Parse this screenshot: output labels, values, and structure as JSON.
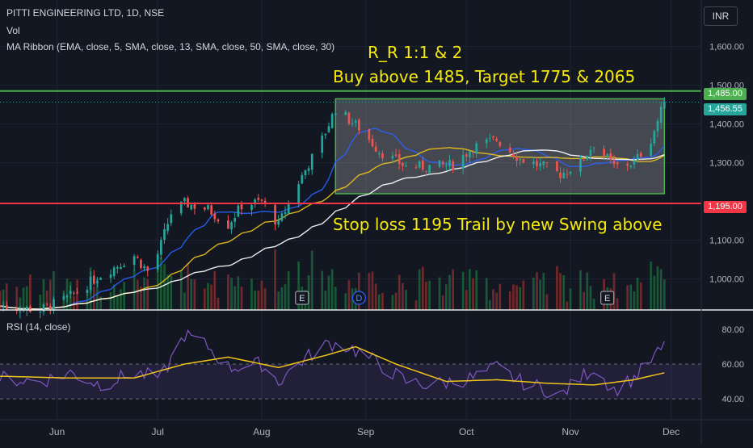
{
  "header": {
    "symbol": "PITTI ENGINEERING LTD, 1D, NSE",
    "vol_label": "Vol",
    "ribbon_label": "MA Ribbon (EMA, close, 5, SMA, close, 13, SMA, close, 50, SMA, close, 30)",
    "currency": "INR"
  },
  "annotations": {
    "rr": "R_R 1:1 & 2",
    "buy": "Buy above 1485, Target 1775 & 2065",
    "stop": "Stop loss 1195 Trail by new Swing above"
  },
  "badges": {
    "buy_level": "1,485.00",
    "last_price": "1,456.55",
    "stop_level": "1,195.00"
  },
  "events": [
    {
      "label": "E",
      "x": "2024-08-13"
    },
    {
      "label": "D",
      "x": "2024-08-30"
    },
    {
      "label": "E",
      "x": "2024-11-12"
    }
  ],
  "colors": {
    "background": "#131722",
    "up": "#26a69a",
    "down": "#ef5350",
    "buy_line": "#4caf50",
    "stop_line": "#f23645",
    "box_border": "#4caf50",
    "annotation": "#f5e90c",
    "rsi_line": "#7e57c2",
    "rsi_ma": "#f0c419",
    "ma_fast": "#2962ff",
    "ma_mid": "#f0c419",
    "ma_slow": "#ffffff"
  },
  "chart_data": [
    {
      "type": "candlestick",
      "y_axis_ticks": [
        "1,600.00",
        "1,500.00",
        "1,400.00",
        "1,300.00",
        "1,100.00",
        "1,000.00"
      ],
      "y_axis_values": [
        1600,
        1500,
        1400,
        1300,
        1100,
        1000
      ],
      "ylim": [
        920,
        1720
      ],
      "x_labels": [
        "Jun",
        "Jul",
        "Aug",
        "Sep",
        "Oct",
        "Nov",
        "Dec"
      ],
      "x_label_dates": [
        "2024-06-01",
        "2024-07-01",
        "2024-08-01",
        "2024-09-01",
        "2024-10-01",
        "2024-11-01",
        "2024-12-01"
      ],
      "xlim": [
        "2024-05-15",
        "2024-12-10"
      ],
      "levels": {
        "buy_above": 1485,
        "stop_loss": 1195,
        "last_price": 1456.55
      },
      "range_box": {
        "x_start": "2024-08-23",
        "x_end": "2024-11-29",
        "y_low": 1220,
        "y_high": 1465
      },
      "anchors": [
        [
          "2024-05-15",
          930
        ],
        [
          "2024-05-27",
          920
        ],
        [
          "2024-06-04",
          950
        ],
        [
          "2024-06-14",
          1010
        ],
        [
          "2024-06-24",
          1060
        ],
        [
          "2024-06-29",
          1010
        ],
        [
          "2024-07-05",
          1170
        ],
        [
          "2024-07-09",
          1195
        ],
        [
          "2024-07-16",
          1180
        ],
        [
          "2024-07-22",
          1140
        ],
        [
          "2024-07-26",
          1190
        ],
        [
          "2024-08-01",
          1200
        ],
        [
          "2024-08-06",
          1140
        ],
        [
          "2024-08-12",
          1250
        ],
        [
          "2024-08-19",
          1360
        ],
        [
          "2024-08-23",
          1440
        ],
        [
          "2024-08-30",
          1390
        ],
        [
          "2024-09-05",
          1330
        ],
        [
          "2024-09-13",
          1290
        ],
        [
          "2024-09-20",
          1290
        ],
        [
          "2024-09-27",
          1295
        ],
        [
          "2024-10-03",
          1340
        ],
        [
          "2024-10-10",
          1360
        ],
        [
          "2024-10-17",
          1310
        ],
        [
          "2024-10-24",
          1290
        ],
        [
          "2024-10-29",
          1270
        ],
        [
          "2024-11-04",
          1300
        ],
        [
          "2024-11-08",
          1350
        ],
        [
          "2024-11-14",
          1290
        ],
        [
          "2024-11-20",
          1300
        ],
        [
          "2024-11-25",
          1360
        ],
        [
          "2024-11-29",
          1456.55
        ]
      ]
    },
    {
      "type": "line",
      "title": "RSI (14, close)",
      "y_axis_ticks": [
        "80.00",
        "60.00",
        "40.00"
      ],
      "y_axis_values": [
        80,
        60,
        40
      ],
      "ylim": [
        28,
        86
      ],
      "band": [
        40,
        60
      ],
      "rsi_anchors": [
        [
          "2024-05-15",
          52
        ],
        [
          "2024-05-27",
          50
        ],
        [
          "2024-06-05",
          55
        ],
        [
          "2024-06-14",
          48
        ],
        [
          "2024-06-24",
          55
        ],
        [
          "2024-07-02",
          52
        ],
        [
          "2024-07-09",
          77
        ],
        [
          "2024-07-16",
          70
        ],
        [
          "2024-07-22",
          58
        ],
        [
          "2024-08-01",
          60
        ],
        [
          "2024-08-06",
          50
        ],
        [
          "2024-08-13",
          62
        ],
        [
          "2024-08-21",
          72
        ],
        [
          "2024-08-27",
          70
        ],
        [
          "2024-09-05",
          60
        ],
        [
          "2024-09-13",
          50
        ],
        [
          "2024-09-20",
          48
        ],
        [
          "2024-09-27",
          50
        ],
        [
          "2024-10-03",
          52
        ],
        [
          "2024-10-10",
          58
        ],
        [
          "2024-10-17",
          50
        ],
        [
          "2024-10-24",
          46
        ],
        [
          "2024-10-29",
          42
        ],
        [
          "2024-11-04",
          52
        ],
        [
          "2024-11-08",
          58
        ],
        [
          "2024-11-14",
          45
        ],
        [
          "2024-11-20",
          52
        ],
        [
          "2024-11-25",
          62
        ],
        [
          "2024-11-29",
          70
        ]
      ],
      "ma_anchors": [
        [
          "2024-05-15",
          53
        ],
        [
          "2024-06-05",
          52
        ],
        [
          "2024-06-24",
          52
        ],
        [
          "2024-07-09",
          60
        ],
        [
          "2024-07-22",
          64
        ],
        [
          "2024-08-06",
          58
        ],
        [
          "2024-08-20",
          65
        ],
        [
          "2024-08-29",
          70
        ],
        [
          "2024-09-10",
          60
        ],
        [
          "2024-09-25",
          50
        ],
        [
          "2024-10-10",
          51
        ],
        [
          "2024-10-25",
          49
        ],
        [
          "2024-11-08",
          48
        ],
        [
          "2024-11-20",
          51
        ],
        [
          "2024-11-29",
          55
        ]
      ]
    }
  ]
}
